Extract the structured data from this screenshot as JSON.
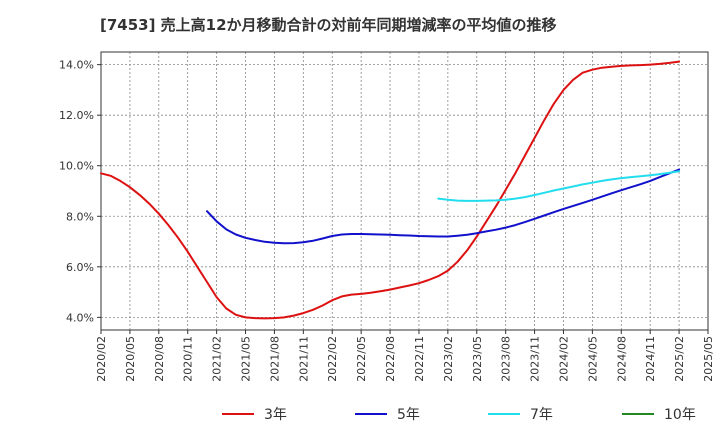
{
  "chart_data": {
    "type": "line",
    "title": "[7453]  売上高12か月移動合計の対前年同期増減率の平均値の推移",
    "xlabel": "",
    "ylabel": "",
    "x_ticks": [
      "2020/02",
      "2020/05",
      "2020/08",
      "2020/11",
      "2021/02",
      "2021/05",
      "2021/08",
      "2021/11",
      "2022/02",
      "2022/05",
      "2022/08",
      "2022/11",
      "2023/02",
      "2023/05",
      "2023/08",
      "2023/11",
      "2024/02",
      "2024/05",
      "2024/08",
      "2024/11",
      "2025/02",
      "2025/05"
    ],
    "y_ticks": [
      "4.0%",
      "6.0%",
      "8.0%",
      "10.0%",
      "12.0%",
      "14.0%"
    ],
    "y_tick_values": [
      4,
      6,
      8,
      10,
      12,
      14
    ],
    "ylim": [
      3.5,
      14.5
    ],
    "grid": true,
    "legend_position": "bottom",
    "series": [
      {
        "name": "3年",
        "color": "#dd1111",
        "points": [
          [
            "2020/02",
            9.7
          ],
          [
            "2020/03",
            9.6
          ],
          [
            "2020/04",
            9.4
          ],
          [
            "2020/05",
            9.15
          ],
          [
            "2020/06",
            8.85
          ],
          [
            "2020/07",
            8.5
          ],
          [
            "2020/08",
            8.1
          ],
          [
            "2020/09",
            7.65
          ],
          [
            "2020/10",
            7.15
          ],
          [
            "2020/11",
            6.6
          ],
          [
            "2020/12",
            6.0
          ],
          [
            "2021/01",
            5.4
          ],
          [
            "2021/02",
            4.8
          ],
          [
            "2021/03",
            4.35
          ],
          [
            "2021/04",
            4.1
          ],
          [
            "2021/05",
            4.0
          ],
          [
            "2021/06",
            3.97
          ],
          [
            "2021/07",
            3.96
          ],
          [
            "2021/08",
            3.97
          ],
          [
            "2021/09",
            4.0
          ],
          [
            "2021/10",
            4.07
          ],
          [
            "2021/11",
            4.17
          ],
          [
            "2021/12",
            4.3
          ],
          [
            "2022/01",
            4.47
          ],
          [
            "2022/02",
            4.68
          ],
          [
            "2022/03",
            4.83
          ],
          [
            "2022/04",
            4.9
          ],
          [
            "2022/05",
            4.93
          ],
          [
            "2022/06",
            4.97
          ],
          [
            "2022/07",
            5.03
          ],
          [
            "2022/08",
            5.1
          ],
          [
            "2022/09",
            5.18
          ],
          [
            "2022/10",
            5.26
          ],
          [
            "2022/11",
            5.35
          ],
          [
            "2022/12",
            5.48
          ],
          [
            "2023/01",
            5.63
          ],
          [
            "2023/02",
            5.85
          ],
          [
            "2023/03",
            6.2
          ],
          [
            "2023/04",
            6.65
          ],
          [
            "2023/05",
            7.2
          ],
          [
            "2023/06",
            7.8
          ],
          [
            "2023/07",
            8.4
          ],
          [
            "2023/08",
            9.05
          ],
          [
            "2023/09",
            9.7
          ],
          [
            "2023/10",
            10.4
          ],
          [
            "2023/11",
            11.1
          ],
          [
            "2023/12",
            11.8
          ],
          [
            "2024/01",
            12.45
          ],
          [
            "2024/02",
            13.0
          ],
          [
            "2024/03",
            13.4
          ],
          [
            "2024/04",
            13.68
          ],
          [
            "2024/05",
            13.8
          ],
          [
            "2024/06",
            13.88
          ],
          [
            "2024/07",
            13.92
          ],
          [
            "2024/08",
            13.95
          ],
          [
            "2024/09",
            13.97
          ],
          [
            "2024/10",
            13.98
          ],
          [
            "2024/11",
            14.0
          ],
          [
            "2024/12",
            14.03
          ],
          [
            "2025/01",
            14.07
          ],
          [
            "2025/02",
            14.12
          ]
        ]
      },
      {
        "name": "5年",
        "color": "#1111cc",
        "points": [
          [
            "2021/01",
            8.2
          ],
          [
            "2021/02",
            7.8
          ],
          [
            "2021/03",
            7.48
          ],
          [
            "2021/04",
            7.28
          ],
          [
            "2021/05",
            7.15
          ],
          [
            "2021/06",
            7.06
          ],
          [
            "2021/07",
            6.99
          ],
          [
            "2021/08",
            6.95
          ],
          [
            "2021/09",
            6.93
          ],
          [
            "2021/10",
            6.94
          ],
          [
            "2021/11",
            6.97
          ],
          [
            "2021/12",
            7.03
          ],
          [
            "2022/01",
            7.12
          ],
          [
            "2022/02",
            7.22
          ],
          [
            "2022/03",
            7.28
          ],
          [
            "2022/04",
            7.3
          ],
          [
            "2022/05",
            7.3
          ],
          [
            "2022/06",
            7.29
          ],
          [
            "2022/07",
            7.28
          ],
          [
            "2022/08",
            7.27
          ],
          [
            "2022/09",
            7.25
          ],
          [
            "2022/10",
            7.24
          ],
          [
            "2022/11",
            7.22
          ],
          [
            "2022/12",
            7.21
          ],
          [
            "2023/01",
            7.2
          ],
          [
            "2023/02",
            7.2
          ],
          [
            "2023/03",
            7.23
          ],
          [
            "2023/04",
            7.27
          ],
          [
            "2023/05",
            7.33
          ],
          [
            "2023/06",
            7.4
          ],
          [
            "2023/07",
            7.47
          ],
          [
            "2023/08",
            7.55
          ],
          [
            "2023/09",
            7.65
          ],
          [
            "2023/10",
            7.77
          ],
          [
            "2023/11",
            7.9
          ],
          [
            "2023/12",
            8.03
          ],
          [
            "2024/01",
            8.16
          ],
          [
            "2024/02",
            8.29
          ],
          [
            "2024/03",
            8.41
          ],
          [
            "2024/04",
            8.53
          ],
          [
            "2024/05",
            8.65
          ],
          [
            "2024/06",
            8.78
          ],
          [
            "2024/07",
            8.91
          ],
          [
            "2024/08",
            9.03
          ],
          [
            "2024/09",
            9.15
          ],
          [
            "2024/10",
            9.27
          ],
          [
            "2024/11",
            9.4
          ],
          [
            "2024/12",
            9.55
          ],
          [
            "2025/01",
            9.7
          ],
          [
            "2025/02",
            9.85
          ]
        ]
      },
      {
        "name": "7年",
        "color": "#22ddee",
        "points": [
          [
            "2023/01",
            8.7
          ],
          [
            "2023/02",
            8.65
          ],
          [
            "2023/03",
            8.62
          ],
          [
            "2023/04",
            8.61
          ],
          [
            "2023/05",
            8.61
          ],
          [
            "2023/06",
            8.62
          ],
          [
            "2023/07",
            8.63
          ],
          [
            "2023/08",
            8.65
          ],
          [
            "2023/09",
            8.7
          ],
          [
            "2023/10",
            8.76
          ],
          [
            "2023/11",
            8.84
          ],
          [
            "2023/12",
            8.93
          ],
          [
            "2024/01",
            9.02
          ],
          [
            "2024/02",
            9.1
          ],
          [
            "2024/03",
            9.18
          ],
          [
            "2024/04",
            9.26
          ],
          [
            "2024/05",
            9.33
          ],
          [
            "2024/06",
            9.4
          ],
          [
            "2024/07",
            9.46
          ],
          [
            "2024/08",
            9.51
          ],
          [
            "2024/09",
            9.55
          ],
          [
            "2024/10",
            9.58
          ],
          [
            "2024/11",
            9.62
          ],
          [
            "2024/12",
            9.67
          ],
          [
            "2025/01",
            9.72
          ],
          [
            "2025/02",
            9.78
          ]
        ]
      },
      {
        "name": "10年",
        "color": "#228822",
        "points": []
      }
    ]
  }
}
